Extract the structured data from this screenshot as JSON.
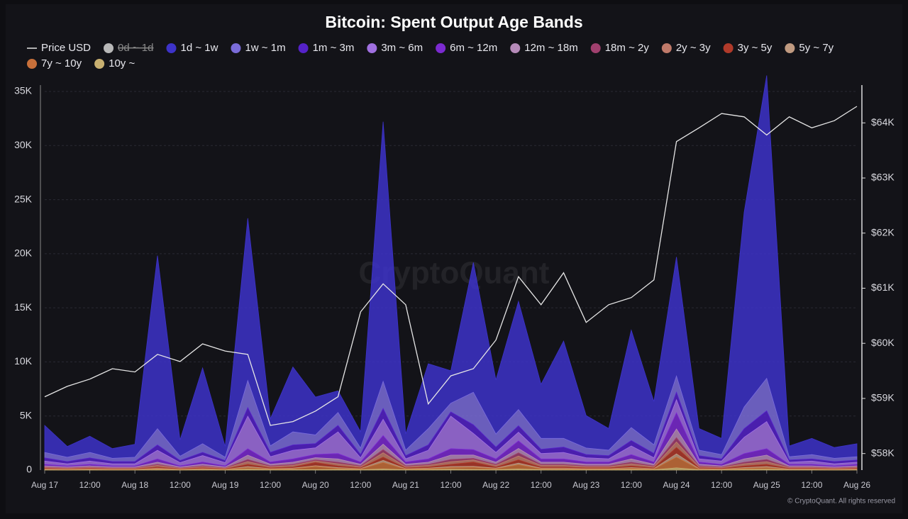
{
  "chart_data": {
    "type": "stacked_area",
    "title": "Bitcoin: Spent Output Age Bands",
    "watermark": "CryptoQuant",
    "credit": "© CryptoQuant. All rights reserved",
    "x": [
      "Aug 17 00:00",
      "Aug 17 06:00",
      "Aug 17 12:00",
      "Aug 17 18:00",
      "Aug 18 00:00",
      "Aug 18 06:00",
      "Aug 18 12:00",
      "Aug 18 18:00",
      "Aug 19 00:00",
      "Aug 19 06:00",
      "Aug 19 12:00",
      "Aug 19 18:00",
      "Aug 20 00:00",
      "Aug 20 06:00",
      "Aug 20 12:00",
      "Aug 20 18:00",
      "Aug 21 00:00",
      "Aug 21 06:00",
      "Aug 21 12:00",
      "Aug 21 18:00",
      "Aug 22 00:00",
      "Aug 22 06:00",
      "Aug 22 12:00",
      "Aug 22 18:00",
      "Aug 23 00:00",
      "Aug 23 06:00",
      "Aug 23 12:00",
      "Aug 23 18:00",
      "Aug 24 00:00",
      "Aug 24 06:00",
      "Aug 24 12:00",
      "Aug 24 18:00",
      "Aug 25 00:00",
      "Aug 25 06:00",
      "Aug 25 12:00",
      "Aug 25 18:00",
      "Aug 26 00:00"
    ],
    "xticks": [
      {
        "value": "Aug 17 00:00",
        "label": "Aug 17"
      },
      {
        "value": "Aug 17 12:00",
        "label": "12:00"
      },
      {
        "value": "Aug 18 00:00",
        "label": "Aug 18"
      },
      {
        "value": "Aug 18 12:00",
        "label": "12:00"
      },
      {
        "value": "Aug 19 00:00",
        "label": "Aug 19"
      },
      {
        "value": "Aug 19 12:00",
        "label": "12:00"
      },
      {
        "value": "Aug 20 00:00",
        "label": "Aug 20"
      },
      {
        "value": "Aug 20 12:00",
        "label": "12:00"
      },
      {
        "value": "Aug 21 00:00",
        "label": "Aug 21"
      },
      {
        "value": "Aug 21 12:00",
        "label": "12:00"
      },
      {
        "value": "Aug 22 00:00",
        "label": "Aug 22"
      },
      {
        "value": "Aug 22 12:00",
        "label": "12:00"
      },
      {
        "value": "Aug 23 00:00",
        "label": "Aug 23"
      },
      {
        "value": "Aug 23 12:00",
        "label": "12:00"
      },
      {
        "value": "Aug 24 00:00",
        "label": "Aug 24"
      },
      {
        "value": "Aug 24 12:00",
        "label": "12:00"
      },
      {
        "value": "Aug 25 00:00",
        "label": "Aug 25"
      },
      {
        "value": "Aug 25 12:00",
        "label": "12:00"
      },
      {
        "value": "Aug 26 00:00",
        "label": "Aug 26"
      }
    ],
    "ylim": [
      0,
      35000
    ],
    "yticks": [
      0,
      {
        "value": 5000,
        "label": "5K"
      },
      {
        "value": 10000,
        "label": "10K"
      },
      {
        "value": 15000,
        "label": "15K"
      },
      {
        "value": 20000,
        "label": "20K"
      },
      {
        "value": 25000,
        "label": "25K"
      },
      {
        "value": 30000,
        "label": "30K"
      },
      {
        "value": 35000,
        "label": "35K"
      }
    ],
    "y2lim": [
      57700,
      64570
    ],
    "y2ticks": [
      {
        "value": 58000,
        "label": "$58K"
      },
      {
        "value": 59000,
        "label": "$59K"
      },
      {
        "value": 60000,
        "label": "$60K"
      },
      {
        "value": 61000,
        "label": "$61K"
      },
      {
        "value": 62000,
        "label": "$62K"
      },
      {
        "value": 63000,
        "label": "$63K"
      },
      {
        "value": 64000,
        "label": "$64K"
      }
    ],
    "grid": true,
    "series": [
      {
        "name": "Price USD",
        "color": "#e6e6e6",
        "axis": "y2",
        "kind": "line",
        "values": [
          59030,
          59220,
          59350,
          59540,
          59480,
          59800,
          59670,
          59990,
          59860,
          59800,
          58510,
          58580,
          58770,
          59030,
          60570,
          61080,
          60700,
          58900,
          59410,
          59540,
          60060,
          61210,
          60700,
          61280,
          60380,
          60700,
          60830,
          61150,
          63660,
          63910,
          64170,
          64110,
          63780,
          64110,
          63910,
          64040,
          64300
        ]
      },
      {
        "name": "0d ~ 1d",
        "color": "#b8b8b8",
        "visible": false
      },
      {
        "name": "1d ~ 1w",
        "color": "#3d33c9",
        "values": [
          2500,
          1000,
          1500,
          900,
          1200,
          16000,
          1500,
          7000,
          1000,
          15000,
          2500,
          6000,
          3500,
          2000,
          1500,
          24000,
          1500,
          6000,
          3000,
          12000,
          5000,
          10000,
          5000,
          9000,
          3000,
          2000,
          9000,
          4000,
          11000,
          2000,
          1500,
          18000,
          28000,
          1000,
          1500,
          1000,
          1200
        ]
      },
      {
        "name": "1w ~ 1m",
        "color": "#7a6cd9",
        "values": [
          500,
          400,
          500,
          300,
          400,
          1500,
          400,
          800,
          300,
          2500,
          600,
          1200,
          800,
          1200,
          600,
          2500,
          500,
          1500,
          800,
          3000,
          1200,
          1500,
          1000,
          800,
          600,
          500,
          1200,
          800,
          1500,
          500,
          400,
          2000,
          3000,
          300,
          400,
          300,
          300
        ]
      },
      {
        "name": "1m ~ 3m",
        "color": "#5522c8",
        "values": [
          300,
          200,
          300,
          200,
          200,
          500,
          200,
          300,
          200,
          800,
          400,
          500,
          400,
          600,
          300,
          1000,
          300,
          500,
          400,
          800,
          500,
          600,
          400,
          500,
          300,
          300,
          500,
          400,
          700,
          300,
          200,
          800,
          1000,
          200,
          200,
          200,
          200
        ]
      },
      {
        "name": "3m ~ 6m",
        "color": "#a070e0",
        "values": [
          300,
          200,
          300,
          200,
          200,
          800,
          300,
          600,
          300,
          3000,
          500,
          800,
          600,
          2000,
          400,
          1500,
          300,
          800,
          3000,
          1500,
          600,
          800,
          500,
          600,
          400,
          300,
          800,
          400,
          1200,
          300,
          300,
          1500,
          2500,
          200,
          300,
          200,
          200
        ]
      },
      {
        "name": "6m ~ 12m",
        "color": "#7b2ad0",
        "values": [
          150,
          100,
          150,
          100,
          100,
          300,
          100,
          200,
          100,
          600,
          200,
          300,
          300,
          500,
          200,
          800,
          200,
          300,
          600,
          500,
          300,
          700,
          300,
          300,
          200,
          200,
          400,
          200,
          1500,
          200,
          150,
          500,
          600,
          150,
          150,
          100,
          150
        ]
      },
      {
        "name": "12m ~ 18m",
        "color": "#b58ab8",
        "values": [
          100,
          80,
          100,
          80,
          80,
          200,
          80,
          150,
          80,
          400,
          150,
          200,
          200,
          300,
          150,
          500,
          150,
          200,
          400,
          300,
          200,
          400,
          200,
          200,
          150,
          150,
          300,
          150,
          800,
          150,
          100,
          300,
          400,
          100,
          100,
          80,
          100
        ]
      },
      {
        "name": "18m ~ 2y",
        "color": "#a0406e",
        "values": [
          50,
          40,
          50,
          40,
          40,
          100,
          40,
          80,
          40,
          200,
          80,
          100,
          100,
          150,
          80,
          300,
          80,
          100,
          200,
          150,
          100,
          300,
          100,
          100,
          80,
          80,
          150,
          80,
          400,
          80,
          50,
          150,
          200,
          50,
          50,
          40,
          50
        ]
      },
      {
        "name": "2y ~ 3y",
        "color": "#c07a6a",
        "values": [
          80,
          60,
          80,
          60,
          60,
          150,
          60,
          100,
          60,
          250,
          100,
          150,
          150,
          200,
          100,
          400,
          100,
          150,
          250,
          200,
          150,
          350,
          150,
          150,
          100,
          100,
          200,
          100,
          500,
          100,
          80,
          200,
          250,
          80,
          80,
          60,
          80
        ]
      },
      {
        "name": "3y ~ 5y",
        "color": "#b03a2a",
        "values": [
          60,
          40,
          60,
          40,
          40,
          100,
          40,
          80,
          40,
          200,
          80,
          100,
          300,
          150,
          80,
          300,
          80,
          100,
          200,
          400,
          100,
          300,
          100,
          100,
          80,
          80,
          150,
          80,
          600,
          80,
          60,
          150,
          200,
          60,
          60,
          40,
          60
        ]
      },
      {
        "name": "5y ~ 7y",
        "color": "#c09a80",
        "values": [
          30,
          20,
          30,
          20,
          20,
          60,
          20,
          40,
          20,
          100,
          40,
          60,
          60,
          80,
          40,
          200,
          40,
          60,
          100,
          80,
          60,
          150,
          60,
          60,
          40,
          40,
          80,
          40,
          300,
          40,
          30,
          80,
          100,
          30,
          30,
          20,
          30
        ]
      },
      {
        "name": "7y ~ 10y",
        "color": "#c8703a",
        "values": [
          40,
          30,
          40,
          30,
          30,
          80,
          30,
          60,
          30,
          150,
          60,
          80,
          300,
          100,
          60,
          600,
          60,
          80,
          150,
          200,
          80,
          400,
          80,
          80,
          60,
          60,
          100,
          60,
          1000,
          60,
          40,
          100,
          150,
          40,
          40,
          30,
          40
        ]
      },
      {
        "name": "10y ~",
        "color": "#c8b070",
        "values": [
          20,
          15,
          20,
          15,
          15,
          40,
          15,
          30,
          15,
          80,
          30,
          40,
          40,
          50,
          30,
          100,
          30,
          40,
          80,
          60,
          40,
          100,
          40,
          40,
          30,
          30,
          50,
          30,
          200,
          30,
          20,
          50,
          80,
          20,
          20,
          15,
          20
        ]
      }
    ]
  }
}
